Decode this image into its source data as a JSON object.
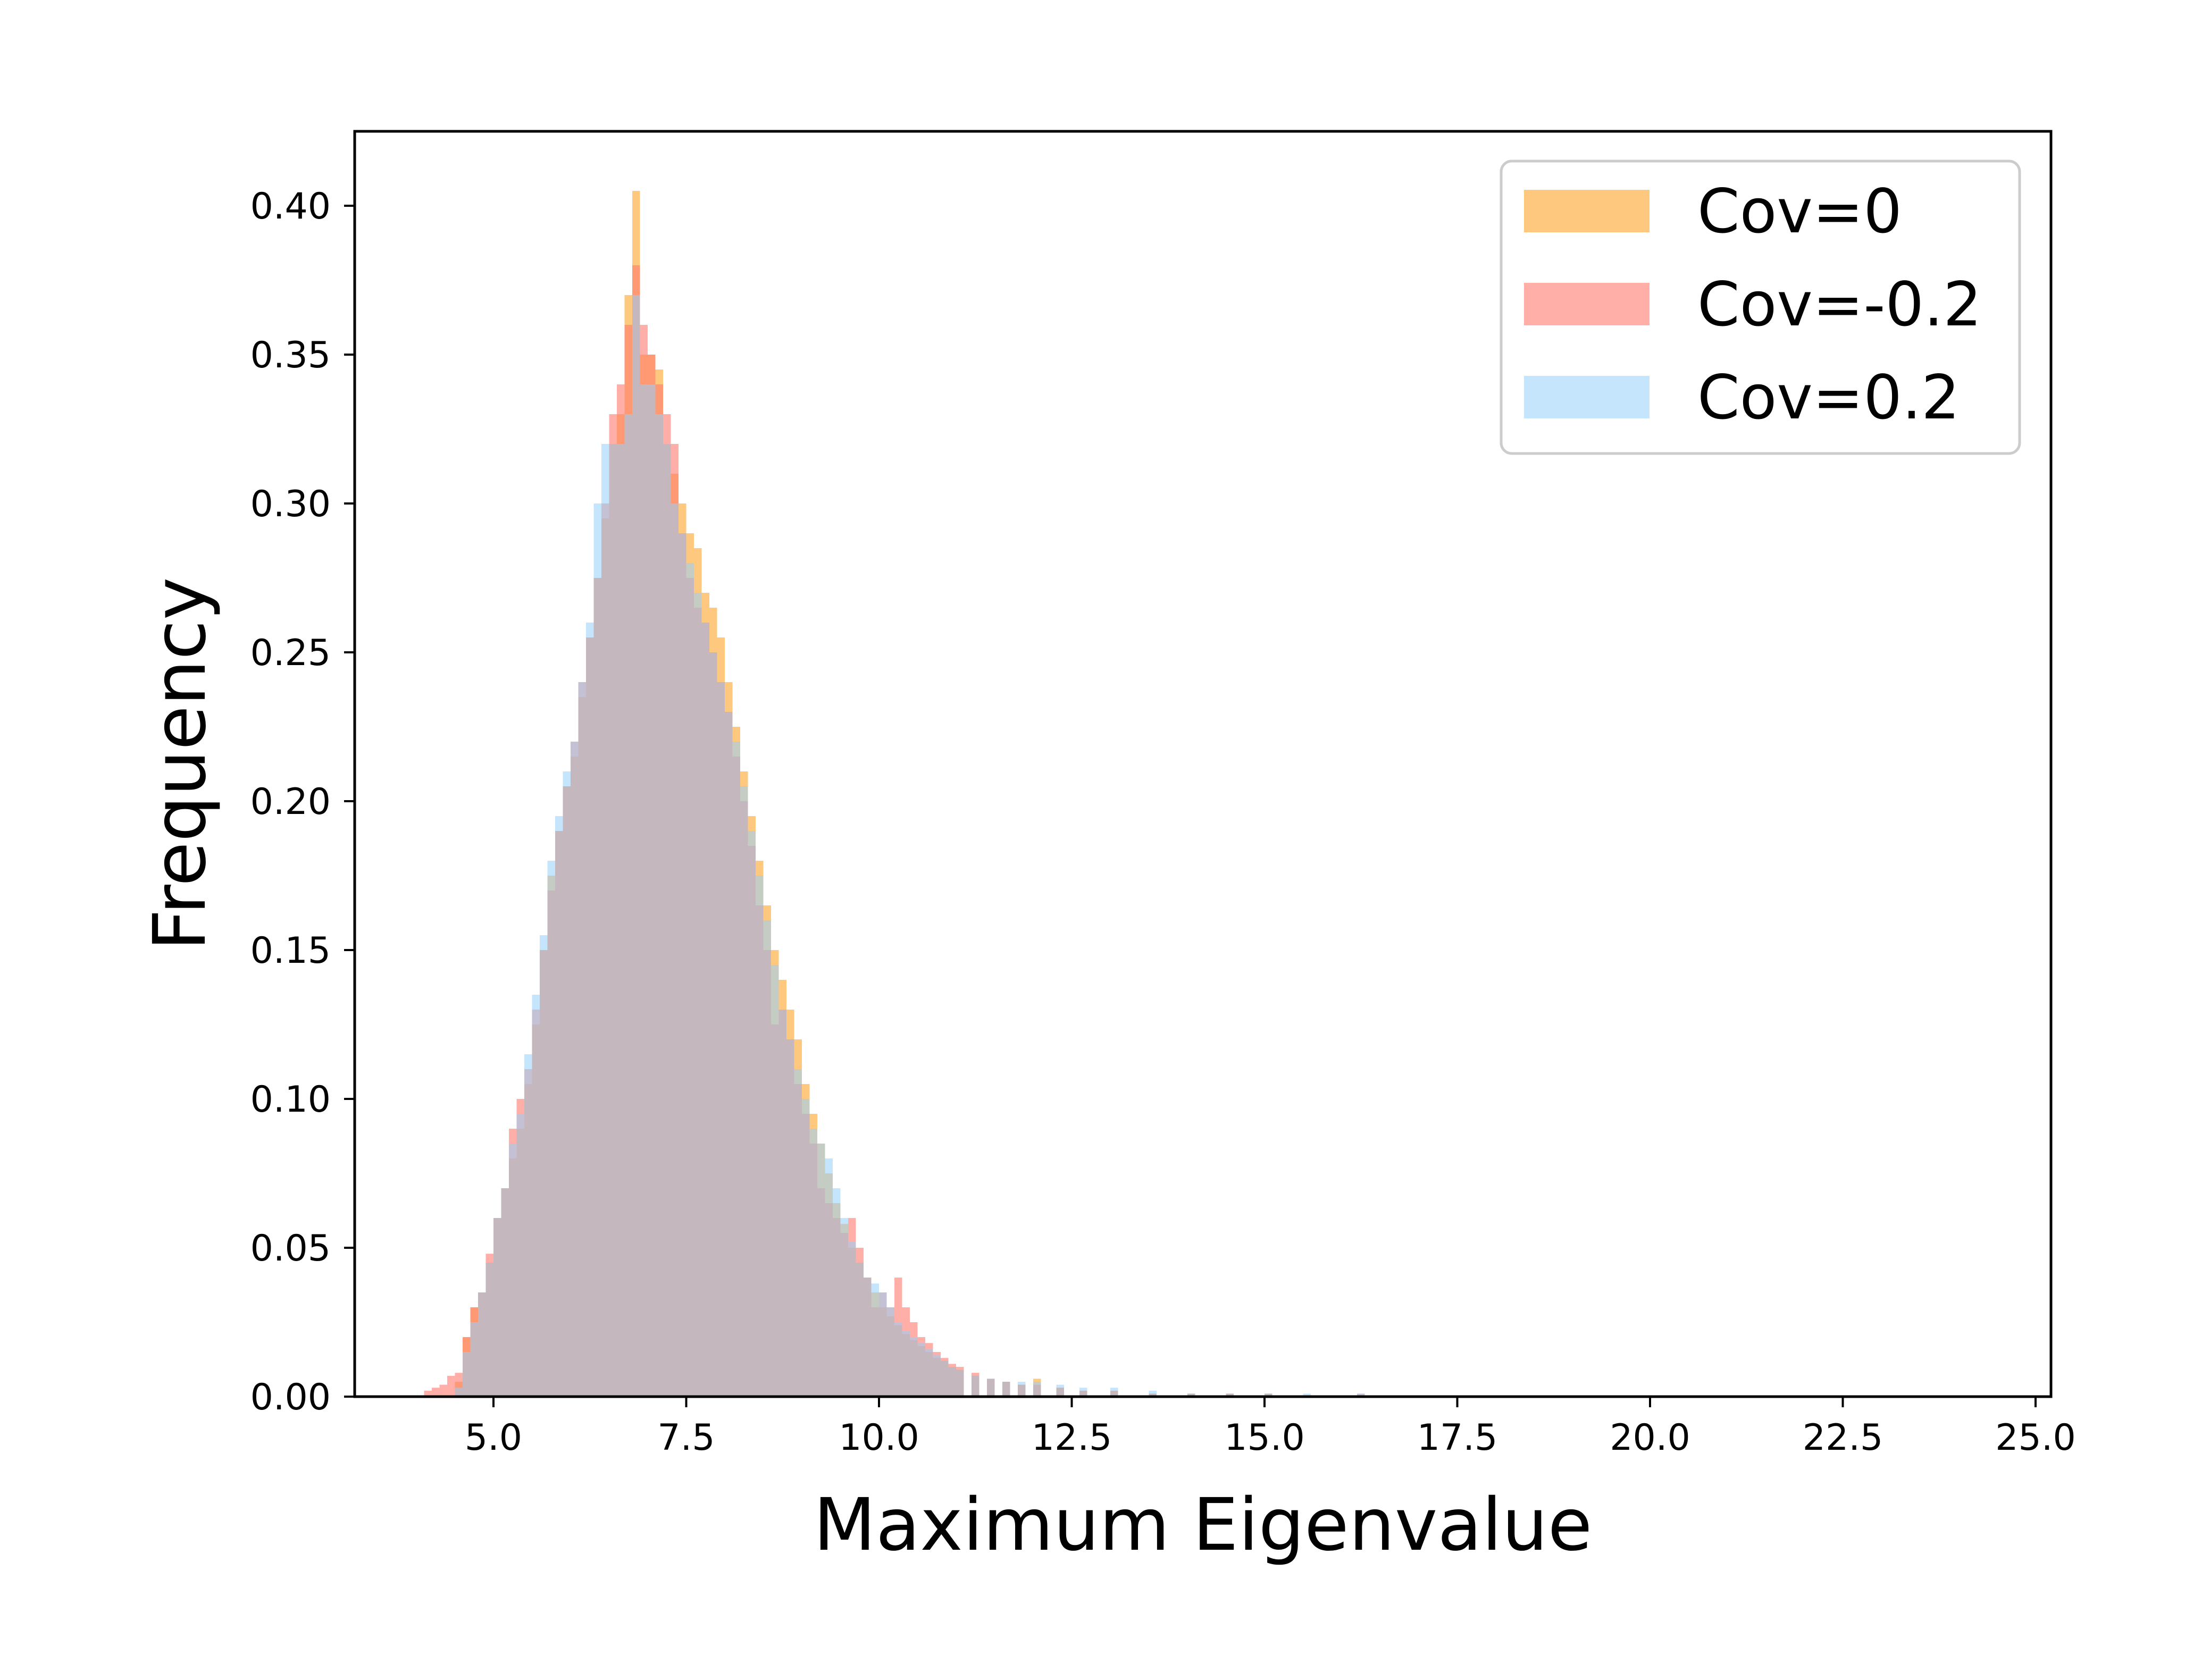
{
  "chart_data": {
    "type": "bar",
    "subtype": "overlaid-histogram",
    "title": "",
    "xlabel": "Maximum Eigenvalue",
    "ylabel": "Frequency",
    "xlim": [
      3.2,
      25.2
    ],
    "ylim": [
      0,
      0.425
    ],
    "xticks": [
      "5.0",
      "7.5",
      "10.0",
      "12.5",
      "15.0",
      "17.5",
      "20.0",
      "22.5",
      "25.0"
    ],
    "yticks": [
      "0.00",
      "0.05",
      "0.10",
      "0.15",
      "0.20",
      "0.25",
      "0.30",
      "0.35",
      "0.40"
    ],
    "grid": false,
    "legend_position": "top-right",
    "bin_width": 0.1,
    "series": [
      {
        "name": "Cov=0",
        "color": "#fdb147",
        "opacity": 0.7,
        "bins": [
          [
            4.5,
            0.005
          ],
          [
            4.6,
            0.02
          ],
          [
            4.7,
            0.03
          ],
          [
            4.8,
            0.035
          ],
          [
            4.9,
            0.045
          ],
          [
            5.0,
            0.06
          ],
          [
            5.1,
            0.07
          ],
          [
            5.2,
            0.08
          ],
          [
            5.3,
            0.09
          ],
          [
            5.4,
            0.105
          ],
          [
            5.5,
            0.125
          ],
          [
            5.6,
            0.15
          ],
          [
            5.7,
            0.175
          ],
          [
            5.8,
            0.19
          ],
          [
            5.9,
            0.205
          ],
          [
            6.0,
            0.215
          ],
          [
            6.1,
            0.235
          ],
          [
            6.2,
            0.255
          ],
          [
            6.3,
            0.275
          ],
          [
            6.4,
            0.295
          ],
          [
            6.5,
            0.32
          ],
          [
            6.6,
            0.33
          ],
          [
            6.7,
            0.37
          ],
          [
            6.8,
            0.405
          ],
          [
            6.9,
            0.35
          ],
          [
            7.0,
            0.35
          ],
          [
            7.1,
            0.345
          ],
          [
            7.2,
            0.32
          ],
          [
            7.3,
            0.31
          ],
          [
            7.4,
            0.3
          ],
          [
            7.5,
            0.29
          ],
          [
            7.6,
            0.285
          ],
          [
            7.7,
            0.27
          ],
          [
            7.8,
            0.265
          ],
          [
            7.9,
            0.255
          ],
          [
            8.0,
            0.24
          ],
          [
            8.1,
            0.225
          ],
          [
            8.2,
            0.21
          ],
          [
            8.3,
            0.195
          ],
          [
            8.4,
            0.18
          ],
          [
            8.5,
            0.165
          ],
          [
            8.6,
            0.15
          ],
          [
            8.7,
            0.14
          ],
          [
            8.8,
            0.13
          ],
          [
            8.9,
            0.12
          ],
          [
            9.0,
            0.105
          ],
          [
            9.1,
            0.095
          ],
          [
            9.2,
            0.085
          ],
          [
            9.3,
            0.075
          ],
          [
            9.4,
            0.065
          ],
          [
            9.5,
            0.058
          ],
          [
            9.6,
            0.05
          ],
          [
            9.7,
            0.045
          ],
          [
            9.8,
            0.04
          ],
          [
            9.9,
            0.035
          ],
          [
            10.0,
            0.03
          ],
          [
            10.1,
            0.027
          ],
          [
            10.2,
            0.024
          ],
          [
            10.3,
            0.021
          ],
          [
            10.4,
            0.019
          ],
          [
            10.5,
            0.017
          ],
          [
            10.6,
            0.015
          ],
          [
            10.7,
            0.013
          ],
          [
            10.8,
            0.012
          ],
          [
            10.9,
            0.01
          ],
          [
            11.0,
            0.009
          ],
          [
            11.2,
            0.007
          ],
          [
            11.4,
            0.006
          ],
          [
            11.6,
            0.005
          ],
          [
            11.8,
            0.004
          ],
          [
            12.0,
            0.006
          ],
          [
            12.3,
            0.003
          ],
          [
            12.6,
            0.002
          ],
          [
            13.0,
            0.002
          ],
          [
            13.5,
            0.001
          ],
          [
            14.0,
            0.001
          ],
          [
            14.5,
            0.001
          ],
          [
            15.0,
            0.001
          ]
        ]
      },
      {
        "name": "Cov=-0.2",
        "color": "#ff796c",
        "opacity": 0.6,
        "bins": [
          [
            4.1,
            0.002
          ],
          [
            4.2,
            0.003
          ],
          [
            4.3,
            0.004
          ],
          [
            4.4,
            0.007
          ],
          [
            4.5,
            0.008
          ],
          [
            4.6,
            0.02
          ],
          [
            4.7,
            0.03
          ],
          [
            4.8,
            0.035
          ],
          [
            4.9,
            0.048
          ],
          [
            5.0,
            0.06
          ],
          [
            5.1,
            0.07
          ],
          [
            5.2,
            0.09
          ],
          [
            5.3,
            0.1
          ],
          [
            5.4,
            0.11
          ],
          [
            5.5,
            0.13
          ],
          [
            5.6,
            0.15
          ],
          [
            5.7,
            0.17
          ],
          [
            5.8,
            0.19
          ],
          [
            5.9,
            0.205
          ],
          [
            6.0,
            0.22
          ],
          [
            6.1,
            0.24
          ],
          [
            6.2,
            0.255
          ],
          [
            6.3,
            0.275
          ],
          [
            6.4,
            0.3
          ],
          [
            6.5,
            0.33
          ],
          [
            6.6,
            0.34
          ],
          [
            6.7,
            0.36
          ],
          [
            6.8,
            0.38
          ],
          [
            6.9,
            0.36
          ],
          [
            7.0,
            0.35
          ],
          [
            7.1,
            0.34
          ],
          [
            7.2,
            0.33
          ],
          [
            7.3,
            0.32
          ],
          [
            7.4,
            0.29
          ],
          [
            7.5,
            0.275
          ],
          [
            7.6,
            0.265
          ],
          [
            7.7,
            0.26
          ],
          [
            7.8,
            0.25
          ],
          [
            7.9,
            0.24
          ],
          [
            8.0,
            0.23
          ],
          [
            8.1,
            0.215
          ],
          [
            8.2,
            0.2
          ],
          [
            8.3,
            0.185
          ],
          [
            8.4,
            0.165
          ],
          [
            8.5,
            0.15
          ],
          [
            8.6,
            0.125
          ],
          [
            8.7,
            0.13
          ],
          [
            8.8,
            0.12
          ],
          [
            8.9,
            0.105
          ],
          [
            9.0,
            0.095
          ],
          [
            9.1,
            0.085
          ],
          [
            9.2,
            0.07
          ],
          [
            9.3,
            0.065
          ],
          [
            9.4,
            0.06
          ],
          [
            9.5,
            0.055
          ],
          [
            9.6,
            0.06
          ],
          [
            9.7,
            0.05
          ],
          [
            9.8,
            0.04
          ],
          [
            9.9,
            0.03
          ],
          [
            10.0,
            0.035
          ],
          [
            10.1,
            0.03
          ],
          [
            10.2,
            0.04
          ],
          [
            10.3,
            0.03
          ],
          [
            10.4,
            0.025
          ],
          [
            10.5,
            0.02
          ],
          [
            10.6,
            0.018
          ],
          [
            10.7,
            0.015
          ],
          [
            10.8,
            0.013
          ],
          [
            10.9,
            0.011
          ],
          [
            11.0,
            0.01
          ],
          [
            11.2,
            0.008
          ],
          [
            11.4,
            0.006
          ],
          [
            11.6,
            0.005
          ],
          [
            11.8,
            0.004
          ],
          [
            12.0,
            0.004
          ],
          [
            12.3,
            0.003
          ],
          [
            12.6,
            0.002
          ],
          [
            13.0,
            0.002
          ],
          [
            13.5,
            0.001
          ],
          [
            14.0,
            0.001
          ],
          [
            14.5,
            0.001
          ],
          [
            15.0,
            0.001
          ],
          [
            16.2,
            0.001
          ]
        ]
      },
      {
        "name": "Cov=0.2",
        "color": "#95d0fc",
        "opacity": 0.55,
        "bins": [
          [
            4.5,
            0.003
          ],
          [
            4.6,
            0.015
          ],
          [
            4.7,
            0.025
          ],
          [
            4.8,
            0.035
          ],
          [
            4.9,
            0.045
          ],
          [
            5.0,
            0.06
          ],
          [
            5.1,
            0.07
          ],
          [
            5.2,
            0.085
          ],
          [
            5.3,
            0.095
          ],
          [
            5.4,
            0.115
          ],
          [
            5.5,
            0.135
          ],
          [
            5.6,
            0.155
          ],
          [
            5.7,
            0.18
          ],
          [
            5.8,
            0.195
          ],
          [
            5.9,
            0.21
          ],
          [
            6.0,
            0.22
          ],
          [
            6.1,
            0.24
          ],
          [
            6.2,
            0.26
          ],
          [
            6.3,
            0.3
          ],
          [
            6.4,
            0.32
          ],
          [
            6.5,
            0.32
          ],
          [
            6.6,
            0.32
          ],
          [
            6.7,
            0.33
          ],
          [
            6.8,
            0.37
          ],
          [
            6.9,
            0.34
          ],
          [
            7.0,
            0.34
          ],
          [
            7.1,
            0.33
          ],
          [
            7.2,
            0.32
          ],
          [
            7.3,
            0.3
          ],
          [
            7.4,
            0.29
          ],
          [
            7.5,
            0.28
          ],
          [
            7.6,
            0.27
          ],
          [
            7.7,
            0.26
          ],
          [
            7.8,
            0.25
          ],
          [
            7.9,
            0.24
          ],
          [
            8.0,
            0.23
          ],
          [
            8.1,
            0.22
          ],
          [
            8.2,
            0.205
          ],
          [
            8.3,
            0.19
          ],
          [
            8.4,
            0.175
          ],
          [
            8.5,
            0.16
          ],
          [
            8.6,
            0.145
          ],
          [
            8.7,
            0.13
          ],
          [
            8.8,
            0.12
          ],
          [
            8.9,
            0.11
          ],
          [
            9.0,
            0.1
          ],
          [
            9.1,
            0.09
          ],
          [
            9.2,
            0.085
          ],
          [
            9.3,
            0.08
          ],
          [
            9.4,
            0.07
          ],
          [
            9.5,
            0.06
          ],
          [
            9.6,
            0.052
          ],
          [
            9.7,
            0.045
          ],
          [
            9.8,
            0.04
          ],
          [
            9.9,
            0.038
          ],
          [
            10.0,
            0.035
          ],
          [
            10.1,
            0.03
          ],
          [
            10.2,
            0.025
          ],
          [
            10.3,
            0.022
          ],
          [
            10.4,
            0.02
          ],
          [
            10.5,
            0.018
          ],
          [
            10.6,
            0.016
          ],
          [
            10.7,
            0.014
          ],
          [
            10.8,
            0.012
          ],
          [
            10.9,
            0.01
          ],
          [
            11.0,
            0.009
          ],
          [
            11.2,
            0.007
          ],
          [
            11.4,
            0.006
          ],
          [
            11.6,
            0.005
          ],
          [
            11.8,
            0.005
          ],
          [
            12.0,
            0.005
          ],
          [
            12.3,
            0.004
          ],
          [
            12.6,
            0.003
          ],
          [
            13.0,
            0.003
          ],
          [
            13.5,
            0.002
          ],
          [
            14.0,
            0.001
          ],
          [
            14.5,
            0.001
          ],
          [
            15.0,
            0.001
          ],
          [
            15.5,
            0.001
          ],
          [
            16.2,
            0.001
          ]
        ]
      }
    ]
  }
}
